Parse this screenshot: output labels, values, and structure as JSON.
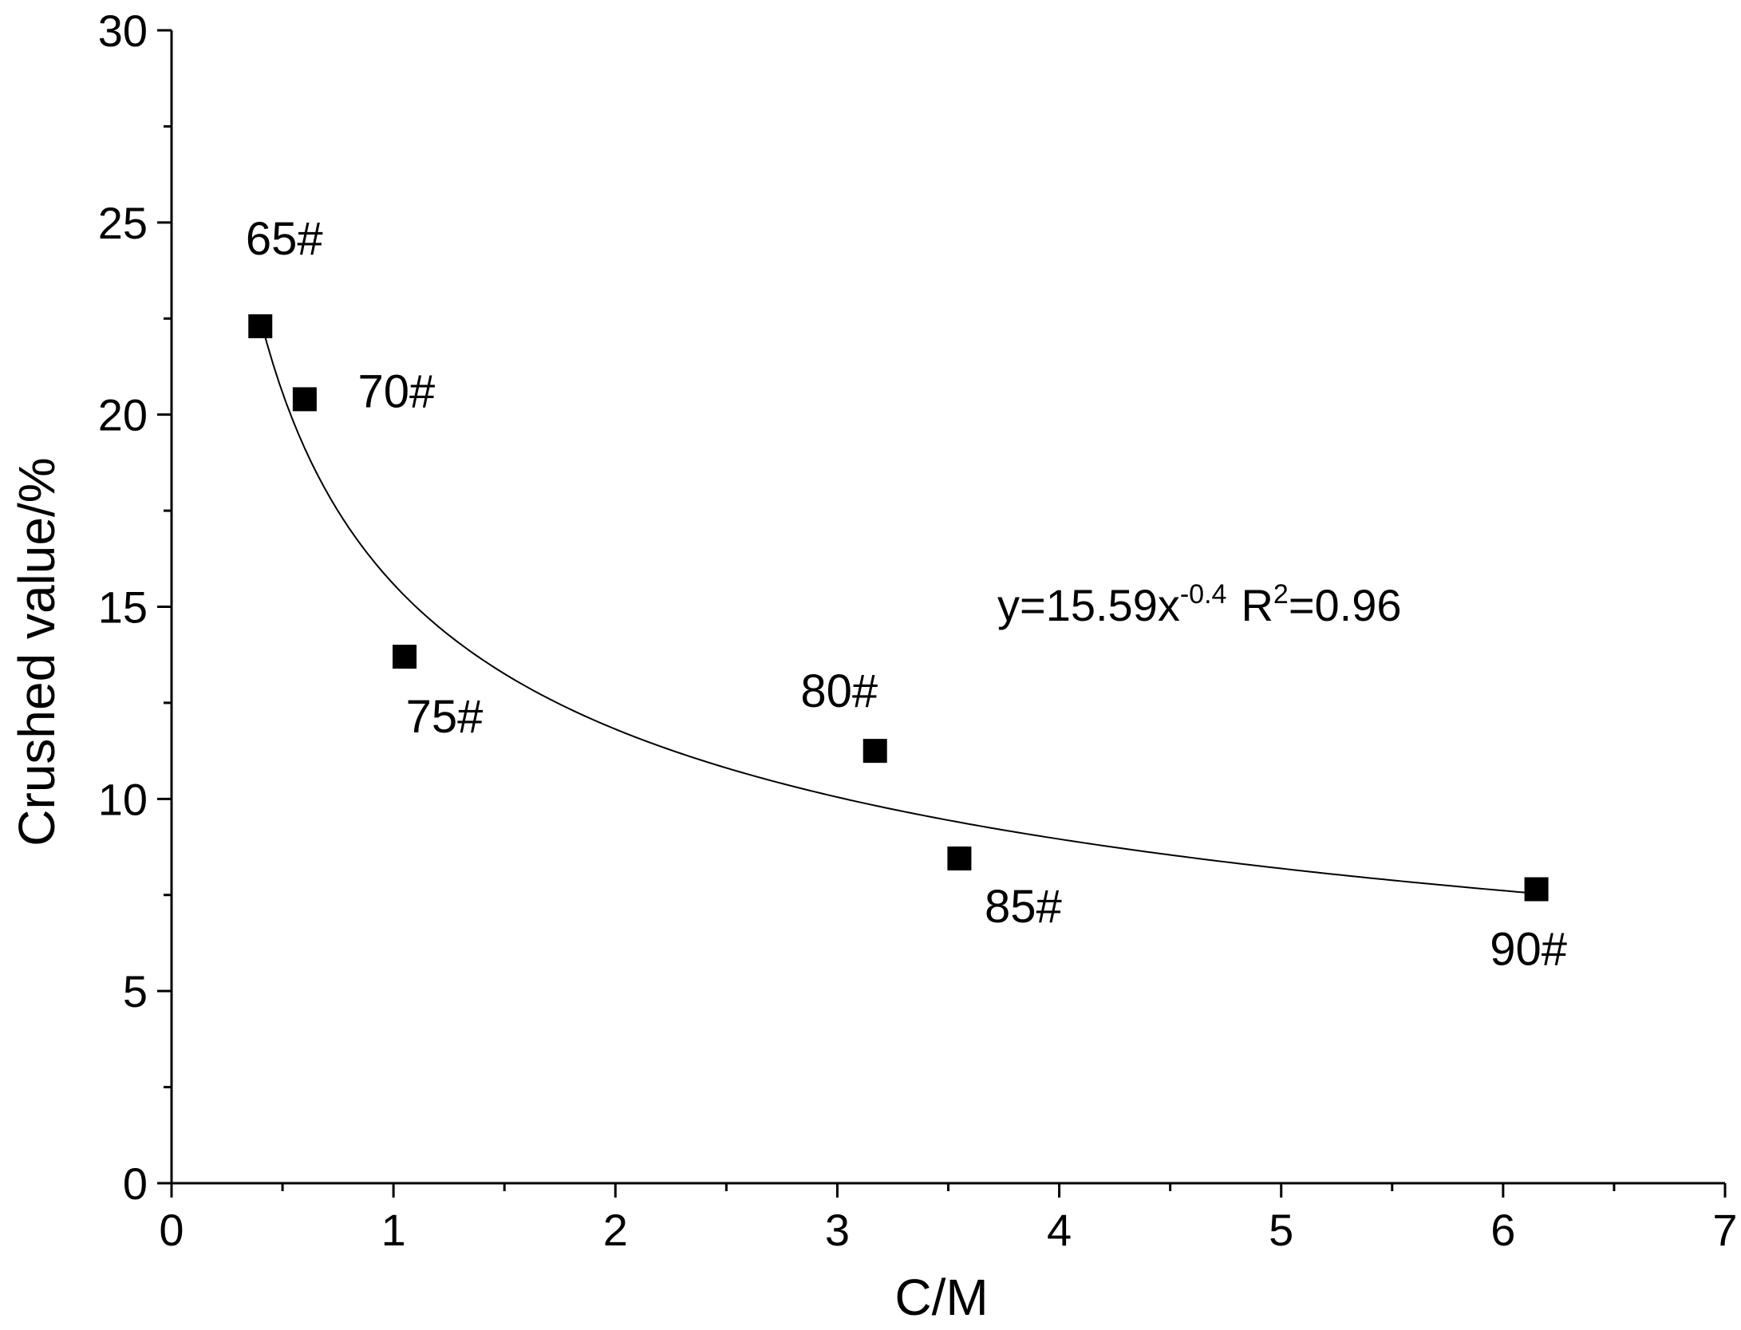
{
  "chart_data": {
    "type": "scatter",
    "title": "",
    "xlabel": "C/M",
    "ylabel": "Crushed value/%",
    "xlim": [
      0,
      7
    ],
    "ylim": [
      0,
      30
    ],
    "x_major_ticks": [
      0,
      1,
      2,
      3,
      4,
      5,
      6,
      7
    ],
    "x_minor_ticks": [
      0.5,
      1.5,
      2.5,
      3.5,
      4.5,
      5.5,
      6.5
    ],
    "y_major_ticks": [
      0,
      5,
      10,
      15,
      20,
      25,
      30
    ],
    "y_minor_ticks": [
      2.5,
      7.5,
      12.5,
      17.5,
      22.5,
      27.5
    ],
    "grid": false,
    "series": [
      {
        "name": "Crushed value",
        "marker": "square",
        "points": [
          {
            "x": 0.4,
            "y": 22.3,
            "label": "65#"
          },
          {
            "x": 0.6,
            "y": 20.4,
            "label": "70#"
          },
          {
            "x": 1.05,
            "y": 13.7,
            "label": "75#"
          },
          {
            "x": 3.17,
            "y": 11.25,
            "label": "80#"
          },
          {
            "x": 3.55,
            "y": 8.45,
            "label": "85#"
          },
          {
            "x": 6.15,
            "y": 7.65,
            "label": "90#"
          }
        ]
      }
    ],
    "fit": {
      "model": "power",
      "a": 15.59,
      "b": -0.4,
      "x_range": [
        0.4,
        6.15
      ],
      "equation_main": "y=15.59x",
      "equation_exponent": "-0.4",
      "r2_prefix": "R",
      "r2_superscript": "2",
      "r2_suffix": "=0.96"
    }
  }
}
